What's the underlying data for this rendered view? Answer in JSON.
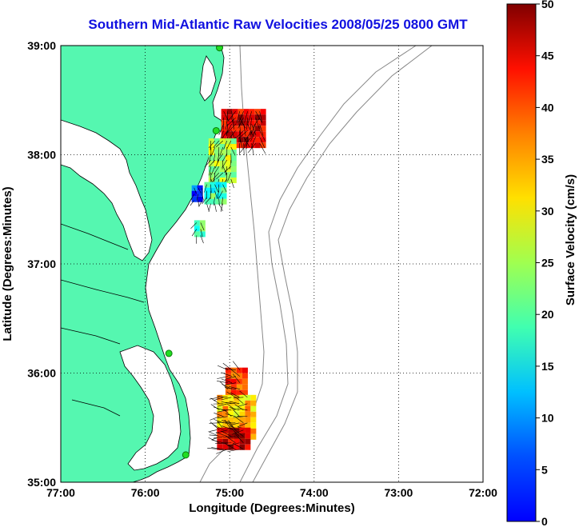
{
  "title": "Southern Mid-Atlantic Raw Velocities 2008/05/25 0800 GMT",
  "map": {
    "xlabel": "Longitude (Degrees:Minutes)",
    "ylabel": "Latitude (Degrees:Minutes)",
    "x_ticks": [
      "77:00",
      "76:00",
      "75:00",
      "74:00",
      "73:00",
      "72:00"
    ],
    "y_ticks": [
      "39:00",
      "38:00",
      "37:00",
      "36:00",
      "35:00"
    ],
    "lon_range": [
      -77,
      -72
    ],
    "lat_range": [
      35,
      39
    ],
    "grid": "dotted",
    "land_color": "#55f7b0"
  },
  "colorbar": {
    "label": "Surface Velocity (cm/s)",
    "ticks": [
      "0",
      "5",
      "10",
      "15",
      "20",
      "25",
      "30",
      "35",
      "40",
      "45",
      "50"
    ],
    "range": [
      0,
      50
    ],
    "colormap": "jet"
  },
  "stations": [
    {
      "lon": -75.12,
      "lat": 38.98
    },
    {
      "lon": -75.16,
      "lat": 38.22
    },
    {
      "lon": -75.72,
      "lat": 36.18
    },
    {
      "lon": -75.52,
      "lat": 35.25
    }
  ],
  "clusters": [
    {
      "lon_min": -75.1,
      "lon_max": -74.62,
      "lat_min": 38.08,
      "lat_max": 38.42,
      "speed": 45
    },
    {
      "lon_min": -75.25,
      "lon_max": -74.95,
      "lat_min": 37.75,
      "lat_max": 38.15,
      "speed": 28
    },
    {
      "lon_min": -75.3,
      "lon_max": -75.05,
      "lat_min": 37.55,
      "lat_max": 37.75,
      "speed": 22
    },
    {
      "lon_min": -75.45,
      "lon_max": -75.32,
      "lat_min": 37.58,
      "lat_max": 37.72,
      "speed": 10
    },
    {
      "lon_min": -75.42,
      "lon_max": -75.32,
      "lat_min": 37.25,
      "lat_max": 37.4,
      "speed": 22
    },
    {
      "lon_min": -75.05,
      "lon_max": -74.85,
      "lat_min": 35.8,
      "lat_max": 36.05,
      "speed": 40
    },
    {
      "lon_min": -75.15,
      "lon_max": -74.75,
      "lat_min": 35.4,
      "lat_max": 35.8,
      "speed": 34
    },
    {
      "lon_min": -75.15,
      "lon_max": -74.8,
      "lat_min": 35.3,
      "lat_max": 35.5,
      "speed": 46
    }
  ]
}
